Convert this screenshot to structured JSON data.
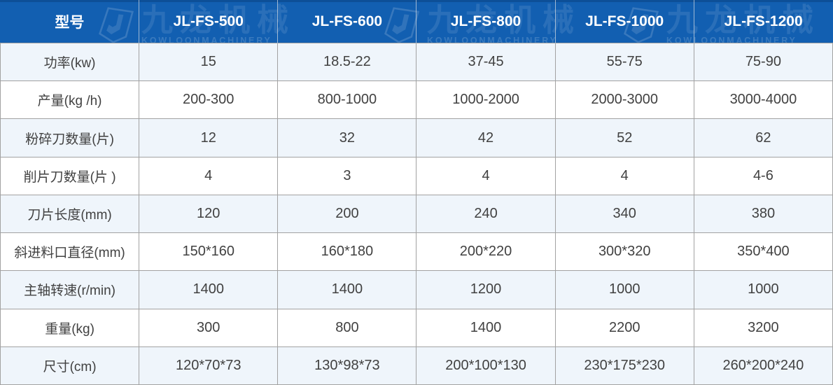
{
  "brand": {
    "name_cn": "九龙机械",
    "name_en": "KOWLOONMACHINERY"
  },
  "table": {
    "header": [
      "型号",
      "JL-FS-500",
      "JL-FS-600",
      "JL-FS-800",
      "JL-FS-1000",
      "JL-FS-1200"
    ],
    "rows": [
      {
        "label": "功率(kw)",
        "values": [
          "15",
          "18.5-22",
          "37-45",
          "55-75",
          "75-90"
        ]
      },
      {
        "label": "产量(kg /h)",
        "values": [
          "200-300",
          "800-1000",
          "1000-2000",
          "2000-3000",
          "3000-4000"
        ]
      },
      {
        "label": "粉碎刀数量(片)",
        "values": [
          "12",
          "32",
          "42",
          "52",
          "62"
        ]
      },
      {
        "label": "削片刀数量(片 )",
        "values": [
          "4",
          "3",
          "4",
          "4",
          "4-6"
        ]
      },
      {
        "label": "刀片长度(mm)",
        "values": [
          "120",
          "200",
          "240",
          "340",
          "380"
        ]
      },
      {
        "label": "斜进料口直径(mm)",
        "values": [
          "150*160",
          "160*180",
          "200*220",
          "300*320",
          "350*400"
        ]
      },
      {
        "label": "主轴转速(r/min)",
        "values": [
          "1400",
          "1400",
          "1200",
          "1000",
          "1000"
        ]
      },
      {
        "label": "重量(kg)",
        "values": [
          "300",
          "800",
          "1400",
          "2200",
          "3200"
        ]
      },
      {
        "label": "尺寸(cm)",
        "values": [
          "120*70*73",
          "130*98*73",
          "200*100*130",
          "230*175*230",
          "260*200*240"
        ]
      }
    ]
  },
  "colors": {
    "header_bg": "#125fb1",
    "header_top_edge": "#0d4f97",
    "header_text": "#ffffff",
    "row_alt_bg": "#eff5fb",
    "row_bg": "#ffffff",
    "border": "#a2a2a2",
    "body_text": "#414141"
  }
}
